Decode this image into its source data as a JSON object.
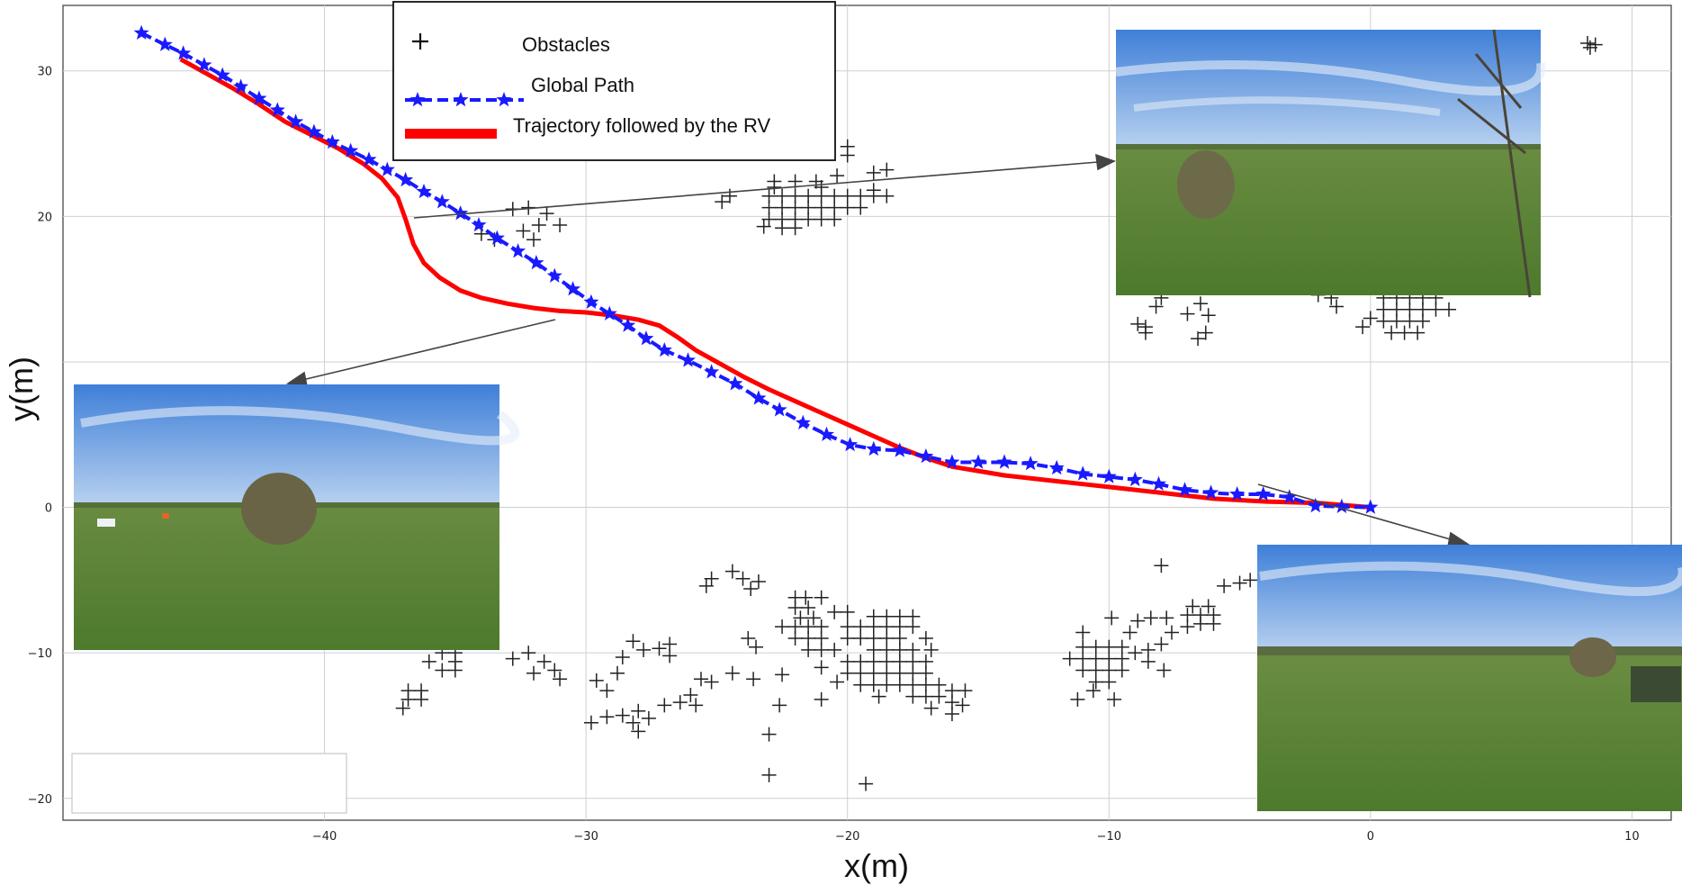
{
  "chart_data": {
    "type": "scatter",
    "xlabel": "x(m)",
    "ylabel": "y(m)",
    "xlim": [
      -50,
      11.5
    ],
    "ylim": [
      -21.5,
      34.5
    ],
    "xticks": [
      -40,
      -30,
      -20,
      -10,
      0,
      10
    ],
    "yticks": [
      -20,
      -10,
      0,
      10,
      20,
      30
    ],
    "xtick_labels": [
      "−40",
      "−30",
      "−20",
      "−10",
      "0",
      "10"
    ],
    "ytick_labels": [
      "−20",
      "−10",
      "0",
      "",
      "20",
      "30"
    ],
    "grid": true,
    "legend_position": "top-center",
    "legend": {
      "obstacles": "Obstacles",
      "global_path": "Global Path",
      "trajectory": "Trajectory followed by the RV"
    },
    "colors": {
      "global_path": "#1a1aff",
      "trajectory": "#ff0000",
      "obstacles": "#222222",
      "grid": "#cfcfcf"
    },
    "series": [
      {
        "name": "Global Path",
        "marker": "star",
        "line": "dashed",
        "x": [
          -47,
          -46.1,
          -45.4,
          -44.6,
          -43.9,
          -43.2,
          -42.5,
          -41.8,
          -41.1,
          -40.4,
          -39.7,
          -39,
          -38.3,
          -37.6,
          -36.9,
          -36.2,
          -35.5,
          -34.8,
          -34.1,
          -33.4,
          -32.6,
          -31.9,
          -31.2,
          -30.5,
          -29.8,
          -29.1,
          -28.4,
          -27.7,
          -27,
          -26.1,
          -25.2,
          -24.3,
          -23.4,
          -22.6,
          -21.7,
          -20.8,
          -19.9,
          -19,
          -18,
          -17,
          -16,
          -15,
          -14,
          -13,
          -12,
          -11,
          -10,
          -9,
          -8.1,
          -7.1,
          -6.1,
          -5.1,
          -4.1,
          -3.1,
          -2.1,
          -1.1,
          0
        ],
        "y": [
          32.6,
          31.8,
          31.2,
          30.4,
          29.7,
          28.9,
          28.1,
          27.3,
          26.5,
          25.8,
          25.1,
          24.5,
          23.9,
          23.2,
          22.5,
          21.7,
          21,
          20.2,
          19.4,
          18.5,
          17.6,
          16.8,
          15.9,
          15,
          14.1,
          13.3,
          12.5,
          11.6,
          10.8,
          10.1,
          9.3,
          8.5,
          7.5,
          6.7,
          5.8,
          5,
          4.3,
          4,
          3.9,
          3.5,
          3.1,
          3.1,
          3.1,
          3.0,
          2.7,
          2.3,
          2.1,
          1.9,
          1.6,
          1.2,
          1.0,
          0.9,
          0.9,
          0.7,
          0.1,
          0.05,
          0
        ]
      },
      {
        "name": "Trajectory followed by the RV",
        "marker": "none",
        "line": "solid",
        "x": [
          -45.5,
          -44.5,
          -43.5,
          -42.5,
          -41.5,
          -40.5,
          -39.5,
          -38.5,
          -37.8,
          -37.2,
          -36.9,
          -36.6,
          -36.2,
          -35.6,
          -34.8,
          -34,
          -33,
          -32,
          -31,
          -30,
          -29,
          -28,
          -27.2,
          -26.5,
          -25.8,
          -25,
          -24,
          -23,
          -22,
          -21,
          -20,
          -19,
          -18,
          -17,
          -16,
          -15,
          -14,
          -13,
          -12,
          -11,
          -10,
          -9,
          -8,
          -7,
          -6,
          -5,
          -4,
          -3,
          -2,
          -1,
          0
        ],
        "y": [
          30.8,
          29.8,
          28.8,
          27.7,
          26.5,
          25.6,
          24.7,
          23.6,
          22.6,
          21.3,
          19.8,
          18.1,
          16.8,
          15.8,
          14.9,
          14.4,
          14.0,
          13.7,
          13.5,
          13.4,
          13.2,
          12.9,
          12.5,
          11.7,
          10.8,
          10.0,
          9.0,
          8.1,
          7.3,
          6.5,
          5.7,
          4.9,
          4.1,
          3.4,
          2.8,
          2.5,
          2.2,
          2.0,
          1.8,
          1.6,
          1.4,
          1.2,
          1.0,
          0.8,
          0.6,
          0.5,
          0.4,
          0.35,
          0.3,
          0.15,
          0
        ]
      }
    ],
    "obstacles": [
      {
        "x": -31.5,
        "y": 20.2
      },
      {
        "x": -32.2,
        "y": 20.6
      },
      {
        "x": -32.8,
        "y": 20.5
      },
      {
        "x": -31.8,
        "y": 19.4
      },
      {
        "x": -32.4,
        "y": 19.0
      },
      {
        "x": -31.0,
        "y": 19.4
      },
      {
        "x": -32.0,
        "y": 18.4
      },
      {
        "x": -34.0,
        "y": 18.8
      },
      {
        "x": -33.5,
        "y": 18.4
      },
      {
        "x": -24.5,
        "y": 21.4
      },
      {
        "x": -24.8,
        "y": 21.0
      },
      {
        "x": -22.8,
        "y": 22.4
      },
      {
        "x": -22.0,
        "y": 22.4
      },
      {
        "x": -21.2,
        "y": 22.4
      },
      {
        "x": -20.4,
        "y": 22.8
      },
      {
        "x": -20.0,
        "y": 24.2
      },
      {
        "x": -19.0,
        "y": 23.0
      },
      {
        "x": -18.5,
        "y": 23.2
      },
      {
        "x": -23.0,
        "y": 21.4
      },
      {
        "x": -22.5,
        "y": 21.4
      },
      {
        "x": -22.0,
        "y": 21.4
      },
      {
        "x": -21.5,
        "y": 21.4
      },
      {
        "x": -21.0,
        "y": 21.4
      },
      {
        "x": -20.5,
        "y": 21.4
      },
      {
        "x": -20.0,
        "y": 21.4
      },
      {
        "x": -19.5,
        "y": 21.4
      },
      {
        "x": -19.0,
        "y": 21.4
      },
      {
        "x": -18.5,
        "y": 21.4
      },
      {
        "x": -23.0,
        "y": 20.6
      },
      {
        "x": -22.5,
        "y": 20.6
      },
      {
        "x": -22.0,
        "y": 20.6
      },
      {
        "x": -21.5,
        "y": 20.6
      },
      {
        "x": -21.0,
        "y": 20.6
      },
      {
        "x": -20.5,
        "y": 20.6
      },
      {
        "x": -20.0,
        "y": 20.6
      },
      {
        "x": -19.5,
        "y": 20.6
      },
      {
        "x": -23.0,
        "y": 19.8
      },
      {
        "x": -22.5,
        "y": 19.8
      },
      {
        "x": -22.0,
        "y": 19.8
      },
      {
        "x": -21.5,
        "y": 19.8
      },
      {
        "x": -21.0,
        "y": 19.8
      },
      {
        "x": -20.5,
        "y": 19.8
      },
      {
        "x": -22.5,
        "y": 19.2
      },
      {
        "x": -22.0,
        "y": 19.2
      },
      {
        "x": -23.2,
        "y": 19.3
      },
      {
        "x": -22.8,
        "y": 22.0
      },
      {
        "x": -21.0,
        "y": 22.0
      },
      {
        "x": -19.0,
        "y": 21.8
      },
      {
        "x": -20.0,
        "y": 24.8
      },
      {
        "x": 8.3,
        "y": 31.9
      },
      {
        "x": 8.6,
        "y": 31.8
      },
      {
        "x": 8.4,
        "y": 31.6
      },
      {
        "x": -8.0,
        "y": 14.4
      },
      {
        "x": -8.2,
        "y": 13.8
      },
      {
        "x": -8.6,
        "y": 12.4
      },
      {
        "x": -8.9,
        "y": 12.6
      },
      {
        "x": -8.6,
        "y": 12.0
      },
      {
        "x": -7.0,
        "y": 13.3
      },
      {
        "x": -6.5,
        "y": 14.0
      },
      {
        "x": -6.2,
        "y": 13.2
      },
      {
        "x": -6.3,
        "y": 12.0
      },
      {
        "x": -6.6,
        "y": 11.6
      },
      {
        "x": -2.0,
        "y": 14.6
      },
      {
        "x": -1.5,
        "y": 14.4
      },
      {
        "x": -1.3,
        "y": 13.8
      },
      {
        "x": 0.5,
        "y": 14.4
      },
      {
        "x": 1.0,
        "y": 14.4
      },
      {
        "x": 1.5,
        "y": 14.4
      },
      {
        "x": 2.0,
        "y": 14.4
      },
      {
        "x": 2.5,
        "y": 14.4
      },
      {
        "x": 0.5,
        "y": 13.6
      },
      {
        "x": 1.0,
        "y": 13.6
      },
      {
        "x": 1.5,
        "y": 13.6
      },
      {
        "x": 2.0,
        "y": 13.6
      },
      {
        "x": 2.5,
        "y": 13.6
      },
      {
        "x": 3.0,
        "y": 13.6
      },
      {
        "x": 0.5,
        "y": 12.8
      },
      {
        "x": 1.0,
        "y": 12.8
      },
      {
        "x": 1.5,
        "y": 12.8
      },
      {
        "x": 2.0,
        "y": 12.8
      },
      {
        "x": 0.8,
        "y": 12.0
      },
      {
        "x": 1.3,
        "y": 12.0
      },
      {
        "x": 1.8,
        "y": 12.0
      },
      {
        "x": 0.0,
        "y": 13.0
      },
      {
        "x": -0.3,
        "y": 12.4
      },
      {
        "x": -25.2,
        "y": -4.9
      },
      {
        "x": -25.4,
        "y": -5.4
      },
      {
        "x": -24.4,
        "y": -4.4
      },
      {
        "x": -24.0,
        "y": -4.9
      },
      {
        "x": -23.4,
        "y": -5.1
      },
      {
        "x": -23.7,
        "y": -5.6
      },
      {
        "x": -22.0,
        "y": -6.2
      },
      {
        "x": -21.6,
        "y": -6.2
      },
      {
        "x": -21.0,
        "y": -6.2
      },
      {
        "x": -22.0,
        "y": -6.9
      },
      {
        "x": -21.5,
        "y": -6.9
      },
      {
        "x": -21.8,
        "y": -7.6
      },
      {
        "x": -21.3,
        "y": -7.6
      },
      {
        "x": -20.5,
        "y": -7.2
      },
      {
        "x": -20.0,
        "y": -7.2
      },
      {
        "x": -19.0,
        "y": -7.5
      },
      {
        "x": -18.5,
        "y": -7.5
      },
      {
        "x": -18.0,
        "y": -7.5
      },
      {
        "x": -17.5,
        "y": -7.5
      },
      {
        "x": -22.5,
        "y": -8.2
      },
      {
        "x": -22.0,
        "y": -8.2
      },
      {
        "x": -21.5,
        "y": -8.2
      },
      {
        "x": -21.0,
        "y": -8.2
      },
      {
        "x": -20.0,
        "y": -8.2
      },
      {
        "x": -19.5,
        "y": -8.2
      },
      {
        "x": -19.0,
        "y": -8.2
      },
      {
        "x": -18.5,
        "y": -8.2
      },
      {
        "x": -18.0,
        "y": -8.2
      },
      {
        "x": -17.5,
        "y": -8.2
      },
      {
        "x": -22.0,
        "y": -9.0
      },
      {
        "x": -21.5,
        "y": -9.0
      },
      {
        "x": -21.0,
        "y": -9.0
      },
      {
        "x": -20.0,
        "y": -9.0
      },
      {
        "x": -19.5,
        "y": -9.0
      },
      {
        "x": -19.0,
        "y": -9.0
      },
      {
        "x": -18.5,
        "y": -9.0
      },
      {
        "x": -18.0,
        "y": -9.0
      },
      {
        "x": -17.0,
        "y": -9.0
      },
      {
        "x": -21.5,
        "y": -9.8
      },
      {
        "x": -21.0,
        "y": -9.8
      },
      {
        "x": -20.5,
        "y": -9.8
      },
      {
        "x": -19.0,
        "y": -9.8
      },
      {
        "x": -18.5,
        "y": -9.8
      },
      {
        "x": -18.0,
        "y": -9.8
      },
      {
        "x": -17.5,
        "y": -9.8
      },
      {
        "x": -16.8,
        "y": -9.8
      },
      {
        "x": -20.0,
        "y": -10.6
      },
      {
        "x": -19.5,
        "y": -10.6
      },
      {
        "x": -19.0,
        "y": -10.6
      },
      {
        "x": -18.5,
        "y": -10.6
      },
      {
        "x": -18.0,
        "y": -10.6
      },
      {
        "x": -17.5,
        "y": -10.6
      },
      {
        "x": -17.0,
        "y": -10.6
      },
      {
        "x": -20.0,
        "y": -11.4
      },
      {
        "x": -19.5,
        "y": -11.4
      },
      {
        "x": -19.0,
        "y": -11.4
      },
      {
        "x": -18.5,
        "y": -11.4
      },
      {
        "x": -18.0,
        "y": -11.4
      },
      {
        "x": -17.5,
        "y": -11.4
      },
      {
        "x": -17.0,
        "y": -11.4
      },
      {
        "x": -19.5,
        "y": -12.2
      },
      {
        "x": -19.0,
        "y": -12.2
      },
      {
        "x": -18.5,
        "y": -12.2
      },
      {
        "x": -18.0,
        "y": -12.2
      },
      {
        "x": -17.5,
        "y": -12.2
      },
      {
        "x": -17.0,
        "y": -12.2
      },
      {
        "x": -16.5,
        "y": -12.2
      },
      {
        "x": -16.0,
        "y": -12.6
      },
      {
        "x": -15.5,
        "y": -12.6
      },
      {
        "x": -17.5,
        "y": -13.0
      },
      {
        "x": -17.0,
        "y": -13.0
      },
      {
        "x": -16.5,
        "y": -13.0
      },
      {
        "x": -16.0,
        "y": -13.4
      },
      {
        "x": -15.6,
        "y": -13.6
      },
      {
        "x": -16.0,
        "y": -14.2
      },
      {
        "x": -16.8,
        "y": -13.8
      },
      {
        "x": -20.4,
        "y": -12.0
      },
      {
        "x": -21.0,
        "y": -13.2
      },
      {
        "x": -22.5,
        "y": -11.5
      },
      {
        "x": -23.5,
        "y": -9.6
      },
      {
        "x": -23.8,
        "y": -9.0
      },
      {
        "x": -23.6,
        "y": -11.8
      },
      {
        "x": -22.6,
        "y": -13.6
      },
      {
        "x": -18.8,
        "y": -13.0
      },
      {
        "x": -21.0,
        "y": -11.0
      },
      {
        "x": -23.0,
        "y": -15.6
      },
      {
        "x": -23.0,
        "y": -18.4
      },
      {
        "x": -19.3,
        "y": -19.0
      },
      {
        "x": -28.2,
        "y": -9.2
      },
      {
        "x": -27.8,
        "y": -9.8
      },
      {
        "x": -28.6,
        "y": -10.3
      },
      {
        "x": -27.2,
        "y": -9.7
      },
      {
        "x": -26.8,
        "y": -9.4
      },
      {
        "x": -26.8,
        "y": -10.2
      },
      {
        "x": -28.8,
        "y": -11.4
      },
      {
        "x": -29.6,
        "y": -11.9
      },
      {
        "x": -29.2,
        "y": -12.6
      },
      {
        "x": -25.6,
        "y": -11.8
      },
      {
        "x": -25.2,
        "y": -12.0
      },
      {
        "x": -24.4,
        "y": -11.4
      },
      {
        "x": -26.0,
        "y": -12.9
      },
      {
        "x": -26.4,
        "y": -13.4
      },
      {
        "x": -25.8,
        "y": -13.6
      },
      {
        "x": -27.0,
        "y": -13.6
      },
      {
        "x": -28.0,
        "y": -14.0
      },
      {
        "x": -28.6,
        "y": -14.3
      },
      {
        "x": -28.2,
        "y": -14.8
      },
      {
        "x": -29.2,
        "y": -14.4
      },
      {
        "x": -29.8,
        "y": -14.8
      },
      {
        "x": -27.6,
        "y": -14.5
      },
      {
        "x": -28.0,
        "y": -15.4
      },
      {
        "x": -32.2,
        "y": -10.0
      },
      {
        "x": -31.6,
        "y": -10.6
      },
      {
        "x": -31.2,
        "y": -11.2
      },
      {
        "x": -32.0,
        "y": -11.4
      },
      {
        "x": -31.0,
        "y": -11.8
      },
      {
        "x": -32.8,
        "y": -10.4
      },
      {
        "x": -35.5,
        "y": -10.0
      },
      {
        "x": -35.0,
        "y": -10.0
      },
      {
        "x": -36.0,
        "y": -10.6
      },
      {
        "x": -35.0,
        "y": -10.6
      },
      {
        "x": -35.5,
        "y": -11.2
      },
      {
        "x": -35.0,
        "y": -11.2
      },
      {
        "x": -36.8,
        "y": -12.6
      },
      {
        "x": -36.3,
        "y": -12.6
      },
      {
        "x": -36.8,
        "y": -13.2
      },
      {
        "x": -36.3,
        "y": -13.2
      },
      {
        "x": -37.0,
        "y": -13.8
      },
      {
        "x": -11.0,
        "y": -9.6
      },
      {
        "x": -10.5,
        "y": -9.6
      },
      {
        "x": -10.0,
        "y": -9.6
      },
      {
        "x": -9.5,
        "y": -9.6
      },
      {
        "x": -11.5,
        "y": -10.4
      },
      {
        "x": -11.0,
        "y": -10.4
      },
      {
        "x": -10.5,
        "y": -10.4
      },
      {
        "x": -10.0,
        "y": -10.4
      },
      {
        "x": -9.5,
        "y": -10.4
      },
      {
        "x": -11.0,
        "y": -11.2
      },
      {
        "x": -10.5,
        "y": -11.2
      },
      {
        "x": -10.0,
        "y": -11.2
      },
      {
        "x": -9.5,
        "y": -11.2
      },
      {
        "x": -10.5,
        "y": -12.0
      },
      {
        "x": -10.0,
        "y": -12.0
      },
      {
        "x": -9.0,
        "y": -10.0
      },
      {
        "x": -8.5,
        "y": -9.8
      },
      {
        "x": -8.0,
        "y": -9.4
      },
      {
        "x": -8.5,
        "y": -10.6
      },
      {
        "x": -9.2,
        "y": -8.6
      },
      {
        "x": -8.9,
        "y": -7.8
      },
      {
        "x": -8.4,
        "y": -7.6
      },
      {
        "x": -7.8,
        "y": -7.6
      },
      {
        "x": -7.6,
        "y": -8.6
      },
      {
        "x": -7.0,
        "y": -8.2
      },
      {
        "x": -6.5,
        "y": -8.0
      },
      {
        "x": -6.0,
        "y": -8.0
      },
      {
        "x": -7.0,
        "y": -7.4
      },
      {
        "x": -6.5,
        "y": -7.4
      },
      {
        "x": -6.0,
        "y": -7.4
      },
      {
        "x": -6.8,
        "y": -6.8
      },
      {
        "x": -6.2,
        "y": -6.8
      },
      {
        "x": -9.9,
        "y": -7.6
      },
      {
        "x": -11.0,
        "y": -8.6
      },
      {
        "x": -10.6,
        "y": -12.6
      },
      {
        "x": -11.2,
        "y": -13.2
      },
      {
        "x": -9.8,
        "y": -13.2
      },
      {
        "x": -7.9,
        "y": -11.2
      },
      {
        "x": -8.0,
        "y": -4.0
      },
      {
        "x": -5.6,
        "y": -5.4
      },
      {
        "x": -5.0,
        "y": -5.2
      },
      {
        "x": -4.6,
        "y": -5.0
      }
    ]
  }
}
